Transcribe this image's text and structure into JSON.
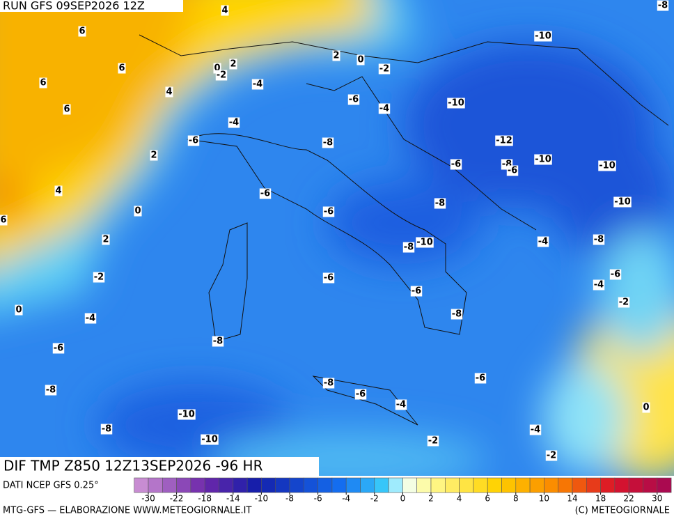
{
  "header": {
    "run": "RUN GFS 09SEP2026 12Z"
  },
  "map": {
    "field_title": "DIF TMP Z850 12Z13SEP2026 -96 HR",
    "source": "DATI NCEP GFS 0.25°",
    "contour_labels": [
      4,
      -8,
      6,
      -10,
      6,
      2,
      0,
      -2,
      0,
      2,
      -2,
      -4,
      6,
      4,
      -6,
      -4,
      -10,
      6,
      -4,
      -12,
      -6,
      -8,
      2,
      -8,
      -6,
      -10,
      -10,
      -6,
      -6,
      4,
      -8,
      -10,
      0,
      -6,
      6,
      2,
      -10,
      -8,
      -4,
      -8,
      -2,
      -6,
      -6,
      -4,
      -6,
      -2,
      0,
      -4,
      -8,
      -8,
      -6,
      -6,
      -8,
      -8,
      -6,
      -4,
      0,
      -10,
      -8,
      -4,
      -2,
      -10,
      -2
    ]
  },
  "colorbar": {
    "ticks": [
      -30,
      -22,
      -18,
      -14,
      -10,
      -8,
      -6,
      -4,
      -2,
      0,
      2,
      4,
      6,
      8,
      10,
      14,
      18,
      22,
      30
    ]
  },
  "footer": {
    "left": "MTG-GFS — ELABORAZIONE WWW.METEOGIORNALE.IT",
    "right": "(C) METEOGIORNALE"
  }
}
